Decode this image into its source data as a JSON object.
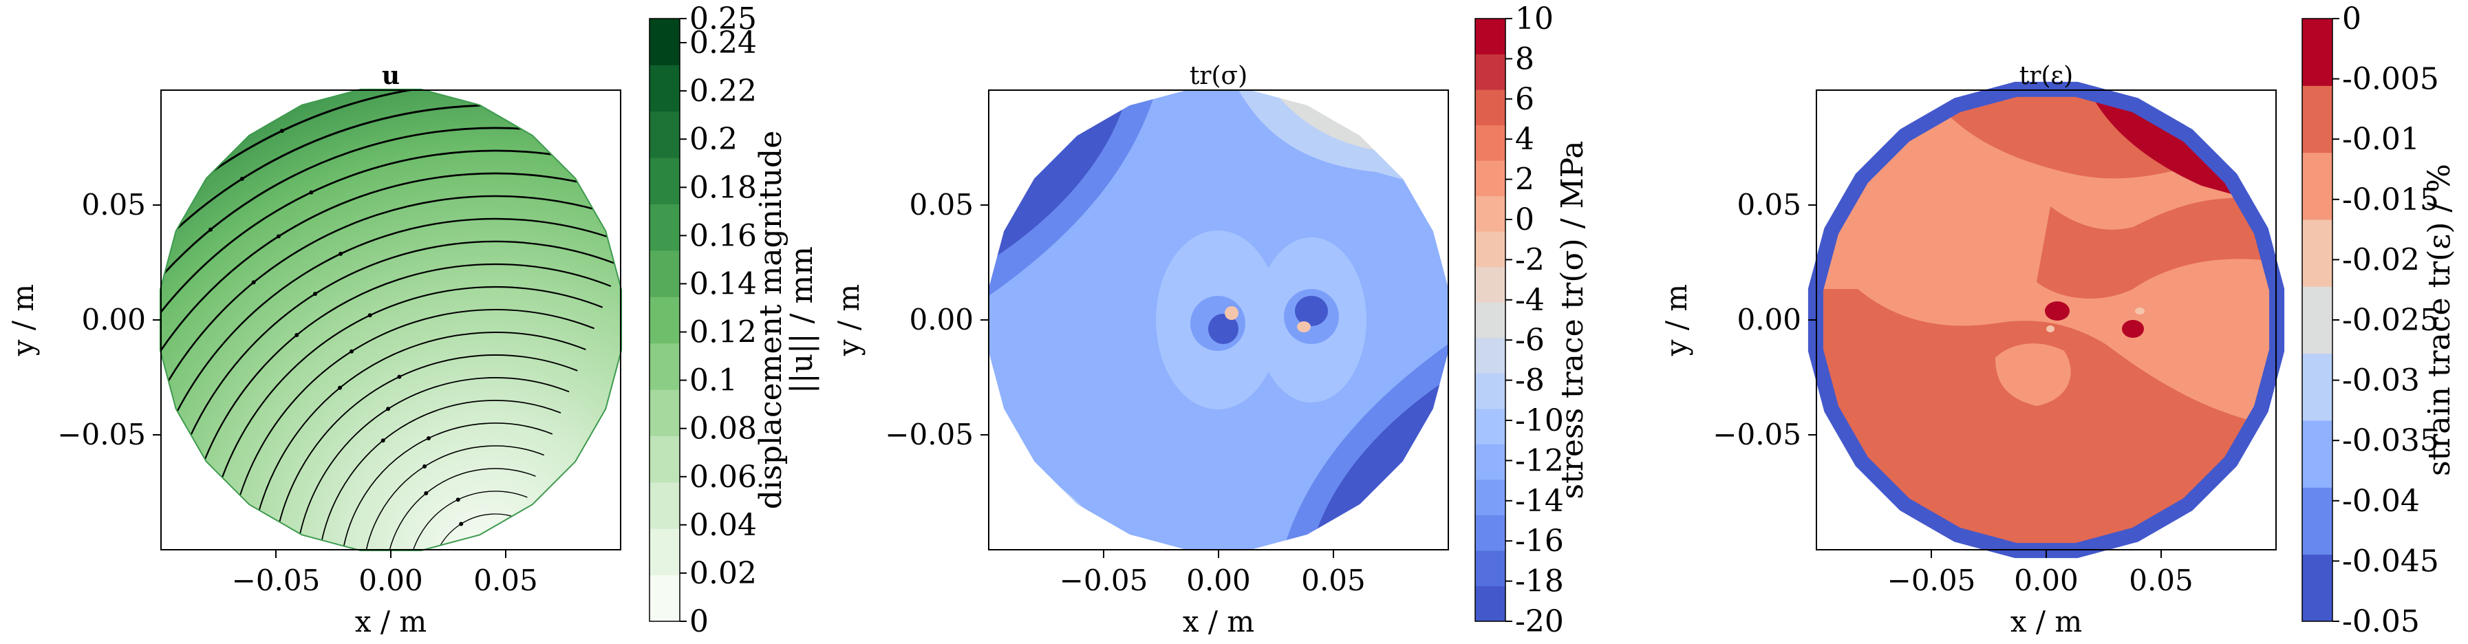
{
  "chart_data": [
    {
      "type": "contour",
      "title": "u",
      "xlabel": "x / m",
      "ylabel": "y / m",
      "xlim": [
        -0.1,
        0.1
      ],
      "ylim": [
        -0.1,
        0.1
      ],
      "xticks": [
        "−0.05",
        "0.00",
        "0.05"
      ],
      "yticks": [
        "0.05",
        "0.00",
        "−0.05"
      ],
      "colorbar": {
        "label_line1": "displacement magnitude",
        "label_line2": "||u|| / mm",
        "ticks": [
          "0.25",
          "0.24",
          "0.22",
          "0.2",
          "0.18",
          "0.16",
          "0.14",
          "0.12",
          "0.1",
          "0.08",
          "0.06",
          "0.04",
          "0.02",
          "0"
        ],
        "tick_values": [
          0.25,
          0.24,
          0.22,
          0.2,
          0.18,
          0.16,
          0.14,
          0.12,
          0.1,
          0.08,
          0.06,
          0.04,
          0.02,
          0
        ],
        "colors": [
          "#f6fbf4",
          "#e6f4e2",
          "#d4edcf",
          "#bfe4b8",
          "#a5d99d",
          "#8bcd84",
          "#6fbe6c",
          "#56ab5b",
          "#3f9a4d",
          "#2b8640",
          "#1d7335",
          "#0e612b",
          "#00441b"
        ]
      },
      "overlay": "streamlines"
    },
    {
      "type": "contour",
      "title": "tr(σ)",
      "xlabel": "x / m",
      "ylabel": "y / m",
      "xlim": [
        -0.1,
        0.1
      ],
      "ylim": [
        -0.1,
        0.1
      ],
      "xticks": [
        "−0.05",
        "0.00",
        "0.05"
      ],
      "yticks": [
        "0.05",
        "0.00",
        "−0.05"
      ],
      "colorbar": {
        "label": "stress trace tr(σ) / MPa",
        "ticks": [
          "10",
          "8",
          "6",
          "4",
          "2",
          "0",
          "-2",
          "-4",
          "-6",
          "-8",
          "-10",
          "-12",
          "-14",
          "-16",
          "-18",
          "-20"
        ],
        "tick_values": [
          10,
          8,
          6,
          4,
          2,
          0,
          -2,
          -4,
          -6,
          -8,
          -10,
          -12,
          -14,
          -16,
          -18,
          -20
        ],
        "colors": [
          "#4358cb",
          "#5470de",
          "#6788ee",
          "#7b9ff9",
          "#8fb1fe",
          "#a5c3fe",
          "#b9d0f9",
          "#cbd8ee",
          "#dcdddd",
          "#ead4c8",
          "#f4c5ad",
          "#f7b194",
          "#f5997a",
          "#ee7d61",
          "#de604d",
          "#c7343e",
          "#b40426"
        ]
      }
    },
    {
      "type": "contour",
      "title": "tr(ε)",
      "xlabel": "x / m",
      "ylabel": "y / m",
      "xlim": [
        -0.1,
        0.1
      ],
      "ylim": [
        -0.1,
        0.1
      ],
      "xticks": [
        "−0.05",
        "0.00",
        "0.05"
      ],
      "yticks": [
        "0.05",
        "0.00",
        "−0.05"
      ],
      "colorbar": {
        "label": "strain trace tr(ε) / %",
        "ticks": [
          "0",
          "-0.005",
          "-0.01",
          "-0.015",
          "-0.02",
          "-0.025",
          "-0.03",
          "-0.035",
          "-0.04",
          "-0.045",
          "-0.05"
        ],
        "tick_values": [
          0,
          -0.005,
          -0.01,
          -0.015,
          -0.02,
          -0.025,
          -0.03,
          -0.035,
          -0.04,
          -0.045,
          -0.05
        ],
        "colors": [
          "#4358cb",
          "#6788ee",
          "#8fb1fe",
          "#b9d0f9",
          "#dcdddd",
          "#f4c5ad",
          "#f5997a",
          "#e26952",
          "#b40426"
        ]
      }
    }
  ]
}
